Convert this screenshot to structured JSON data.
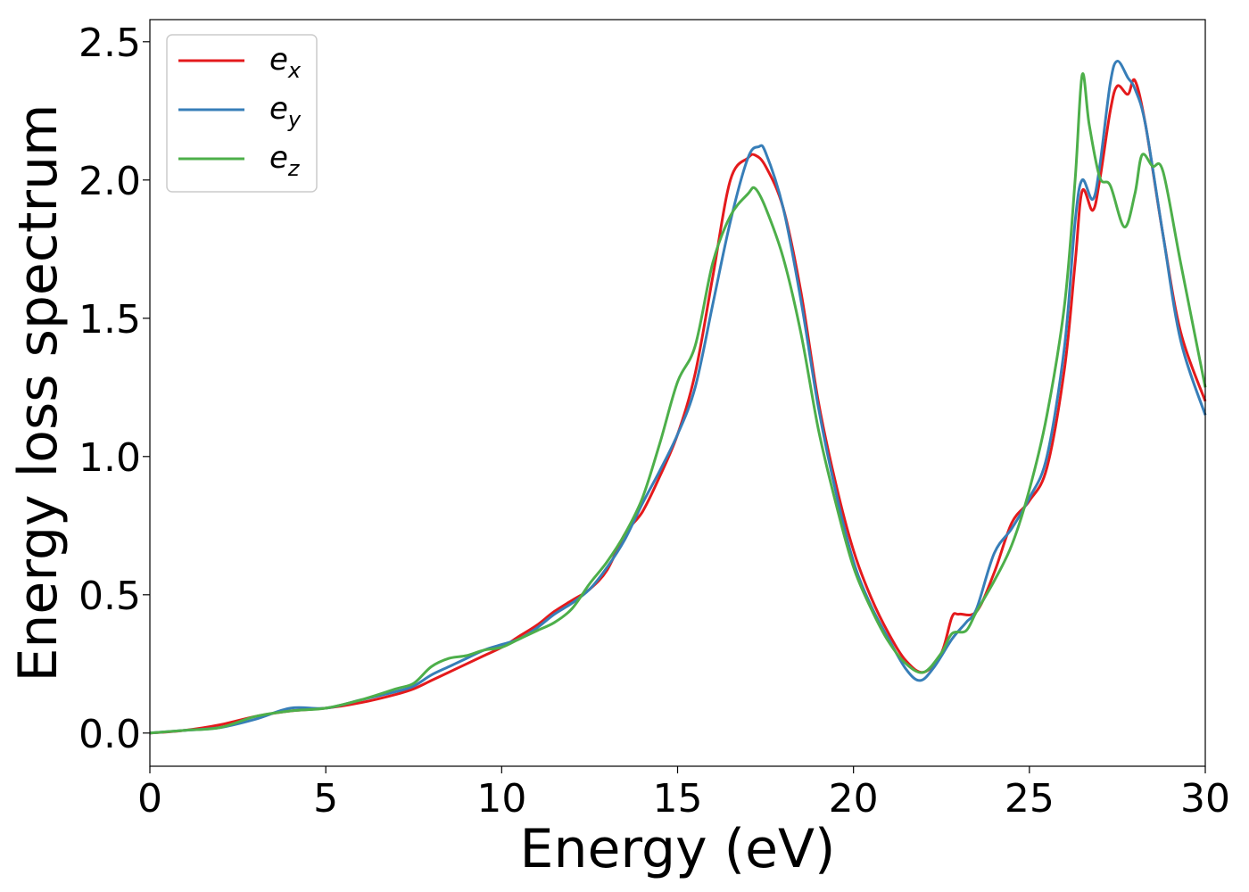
{
  "chart_data": {
    "type": "line",
    "title": "",
    "xlabel": "Energy (eV)",
    "ylabel": "Energy loss spectrum",
    "xlim": [
      0,
      30
    ],
    "ylim": [
      -0.12,
      2.58
    ],
    "xticks": [
      0,
      5,
      10,
      15,
      20,
      25,
      30
    ],
    "xtick_labels": [
      "0",
      "5",
      "10",
      "15",
      "20",
      "25",
      "30"
    ],
    "yticks": [
      0.0,
      0.5,
      1.0,
      1.5,
      2.0,
      2.5
    ],
    "ytick_labels": [
      "0.0",
      "0.5",
      "1.0",
      "1.5",
      "2.0",
      "2.5"
    ],
    "grid": false,
    "legend": {
      "position": "top-left"
    },
    "series": [
      {
        "name": "e_x",
        "legend_base": "e",
        "legend_sub": "x",
        "color": "#e41a1c",
        "points": [
          [
            0,
            0.0
          ],
          [
            1,
            0.01
          ],
          [
            2,
            0.03
          ],
          [
            3,
            0.06
          ],
          [
            4,
            0.08
          ],
          [
            5,
            0.09
          ],
          [
            6,
            0.11
          ],
          [
            7,
            0.14
          ],
          [
            7.5,
            0.16
          ],
          [
            8,
            0.19
          ],
          [
            8.5,
            0.22
          ],
          [
            9,
            0.25
          ],
          [
            9.5,
            0.28
          ],
          [
            10,
            0.31
          ],
          [
            10.5,
            0.35
          ],
          [
            11,
            0.39
          ],
          [
            11.5,
            0.44
          ],
          [
            12,
            0.48
          ],
          [
            12.5,
            0.52
          ],
          [
            13,
            0.59
          ],
          [
            13.5,
            0.72
          ],
          [
            14,
            0.8
          ],
          [
            14.5,
            0.93
          ],
          [
            15,
            1.08
          ],
          [
            15.5,
            1.3
          ],
          [
            16,
            1.65
          ],
          [
            16.5,
            2.0
          ],
          [
            17,
            2.08
          ],
          [
            17.2,
            2.09
          ],
          [
            17.5,
            2.05
          ],
          [
            18,
            1.9
          ],
          [
            18.5,
            1.6
          ],
          [
            19,
            1.2
          ],
          [
            19.5,
            0.9
          ],
          [
            20,
            0.66
          ],
          [
            20.5,
            0.49
          ],
          [
            21,
            0.36
          ],
          [
            21.5,
            0.26
          ],
          [
            22,
            0.22
          ],
          [
            22.5,
            0.29
          ],
          [
            22.8,
            0.42
          ],
          [
            23,
            0.43
          ],
          [
            23.5,
            0.44
          ],
          [
            24,
            0.58
          ],
          [
            24.5,
            0.76
          ],
          [
            25,
            0.84
          ],
          [
            25.5,
            0.96
          ],
          [
            26,
            1.32
          ],
          [
            26.3,
            1.7
          ],
          [
            26.5,
            1.96
          ],
          [
            26.8,
            1.89
          ],
          [
            27,
            2.0
          ],
          [
            27.3,
            2.25
          ],
          [
            27.5,
            2.34
          ],
          [
            27.8,
            2.31
          ],
          [
            28,
            2.36
          ],
          [
            28.3,
            2.2
          ],
          [
            28.8,
            1.8
          ],
          [
            29.3,
            1.45
          ],
          [
            30,
            1.2
          ]
        ]
      },
      {
        "name": "e_y",
        "legend_base": "e",
        "legend_sub": "y",
        "color": "#377eb8",
        "points": [
          [
            0,
            0.0
          ],
          [
            1,
            0.01
          ],
          [
            2,
            0.02
          ],
          [
            3,
            0.05
          ],
          [
            4,
            0.09
          ],
          [
            5,
            0.09
          ],
          [
            6,
            0.12
          ],
          [
            7,
            0.15
          ],
          [
            7.5,
            0.17
          ],
          [
            8,
            0.21
          ],
          [
            8.5,
            0.24
          ],
          [
            9,
            0.27
          ],
          [
            9.5,
            0.3
          ],
          [
            10,
            0.32
          ],
          [
            10.5,
            0.34
          ],
          [
            11,
            0.38
          ],
          [
            11.5,
            0.43
          ],
          [
            12,
            0.47
          ],
          [
            12.5,
            0.52
          ],
          [
            13,
            0.6
          ],
          [
            13.5,
            0.7
          ],
          [
            14,
            0.83
          ],
          [
            14.5,
            0.95
          ],
          [
            15,
            1.08
          ],
          [
            15.5,
            1.25
          ],
          [
            16,
            1.55
          ],
          [
            16.5,
            1.85
          ],
          [
            17,
            2.08
          ],
          [
            17.3,
            2.12
          ],
          [
            17.5,
            2.1
          ],
          [
            18,
            1.9
          ],
          [
            18.5,
            1.57
          ],
          [
            19,
            1.18
          ],
          [
            19.5,
            0.87
          ],
          [
            20,
            0.62
          ],
          [
            20.5,
            0.46
          ],
          [
            21,
            0.34
          ],
          [
            21.5,
            0.23
          ],
          [
            21.9,
            0.19
          ],
          [
            22.3,
            0.24
          ],
          [
            22.8,
            0.34
          ],
          [
            23.2,
            0.4
          ],
          [
            23.5,
            0.45
          ],
          [
            24,
            0.65
          ],
          [
            24.5,
            0.74
          ],
          [
            25,
            0.85
          ],
          [
            25.5,
            1.0
          ],
          [
            26,
            1.4
          ],
          [
            26.3,
            1.85
          ],
          [
            26.5,
            2.0
          ],
          [
            26.8,
            1.93
          ],
          [
            27,
            2.05
          ],
          [
            27.3,
            2.35
          ],
          [
            27.5,
            2.43
          ],
          [
            27.8,
            2.37
          ],
          [
            28,
            2.33
          ],
          [
            28.3,
            2.2
          ],
          [
            28.8,
            1.8
          ],
          [
            29.3,
            1.42
          ],
          [
            30,
            1.15
          ]
        ]
      },
      {
        "name": "e_z",
        "legend_base": "e",
        "legend_sub": "z",
        "color": "#4daf4a",
        "points": [
          [
            0,
            0.0
          ],
          [
            1,
            0.01
          ],
          [
            2,
            0.02
          ],
          [
            3,
            0.06
          ],
          [
            4,
            0.08
          ],
          [
            5,
            0.09
          ],
          [
            6,
            0.12
          ],
          [
            7,
            0.16
          ],
          [
            7.5,
            0.18
          ],
          [
            8,
            0.24
          ],
          [
            8.5,
            0.27
          ],
          [
            9,
            0.28
          ],
          [
            9.5,
            0.3
          ],
          [
            10,
            0.31
          ],
          [
            10.5,
            0.34
          ],
          [
            11,
            0.37
          ],
          [
            11.5,
            0.4
          ],
          [
            12,
            0.45
          ],
          [
            12.5,
            0.54
          ],
          [
            13,
            0.62
          ],
          [
            13.5,
            0.72
          ],
          [
            14,
            0.85
          ],
          [
            14.5,
            1.05
          ],
          [
            15,
            1.27
          ],
          [
            15.5,
            1.4
          ],
          [
            16,
            1.7
          ],
          [
            16.5,
            1.87
          ],
          [
            17,
            1.95
          ],
          [
            17.2,
            1.97
          ],
          [
            17.5,
            1.9
          ],
          [
            18,
            1.72
          ],
          [
            18.5,
            1.45
          ],
          [
            19,
            1.1
          ],
          [
            19.5,
            0.83
          ],
          [
            20,
            0.6
          ],
          [
            20.5,
            0.45
          ],
          [
            21,
            0.33
          ],
          [
            21.5,
            0.25
          ],
          [
            22,
            0.22
          ],
          [
            22.5,
            0.29
          ],
          [
            22.8,
            0.36
          ],
          [
            23.2,
            0.37
          ],
          [
            23.5,
            0.44
          ],
          [
            24,
            0.55
          ],
          [
            24.5,
            0.68
          ],
          [
            25,
            0.88
          ],
          [
            25.5,
            1.15
          ],
          [
            26,
            1.55
          ],
          [
            26.3,
            2.0
          ],
          [
            26.5,
            2.38
          ],
          [
            26.7,
            2.2
          ],
          [
            27,
            2.01
          ],
          [
            27.3,
            1.98
          ],
          [
            27.7,
            1.83
          ],
          [
            28,
            1.95
          ],
          [
            28.2,
            2.09
          ],
          [
            28.5,
            2.05
          ],
          [
            28.8,
            2.03
          ],
          [
            29.3,
            1.7
          ],
          [
            30,
            1.25
          ]
        ]
      }
    ]
  }
}
